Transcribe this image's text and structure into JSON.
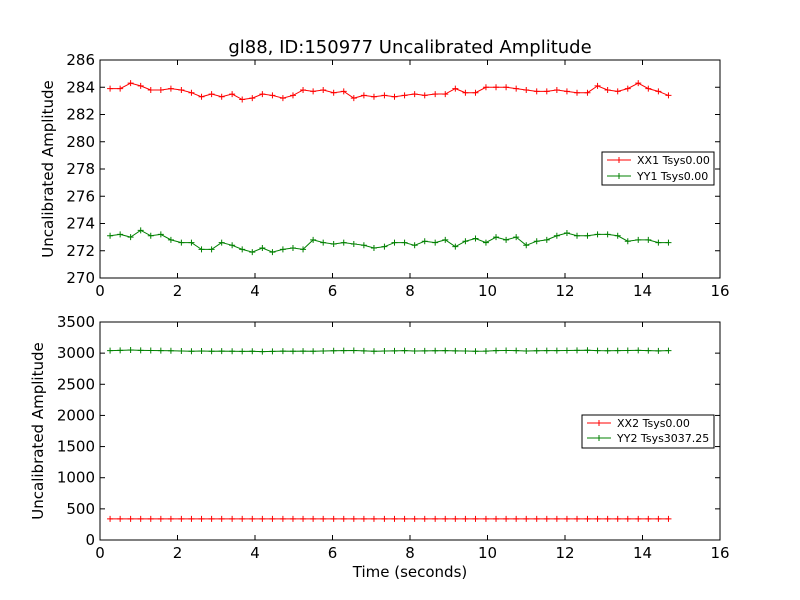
{
  "chart_data": [
    {
      "type": "line",
      "title": "gl88, ID:150977 Uncalibrated Amplitude",
      "xlabel": "",
      "ylabel": "Uncalibrated Amplitude",
      "xlim": [
        0,
        16
      ],
      "ylim": [
        270,
        286
      ],
      "xticks": [
        0,
        2,
        4,
        6,
        8,
        10,
        12,
        14,
        16
      ],
      "yticks": [
        270,
        272,
        274,
        276,
        278,
        280,
        282,
        284,
        286
      ],
      "legend_position": "center-right",
      "x": [
        0.26,
        0.52,
        0.79,
        1.05,
        1.31,
        1.57,
        1.83,
        2.1,
        2.36,
        2.62,
        2.88,
        3.14,
        3.41,
        3.67,
        3.93,
        4.19,
        4.45,
        4.72,
        4.98,
        5.24,
        5.5,
        5.76,
        6.03,
        6.29,
        6.55,
        6.81,
        7.07,
        7.34,
        7.6,
        7.86,
        8.12,
        8.38,
        8.65,
        8.91,
        9.17,
        9.43,
        9.69,
        9.96,
        10.22,
        10.48,
        10.74,
        11.0,
        11.27,
        11.53,
        11.79,
        12.05,
        12.31,
        12.58,
        12.84,
        13.1,
        13.36,
        13.62,
        13.89,
        14.15,
        14.41,
        14.67
      ],
      "series": [
        {
          "name": "XX1 Tsys0.00",
          "color": "#ff0000",
          "values": [
            283.9,
            283.9,
            284.3,
            284.1,
            283.8,
            283.8,
            283.9,
            283.8,
            283.6,
            283.3,
            283.5,
            283.3,
            283.5,
            283.1,
            283.2,
            283.5,
            283.4,
            283.2,
            283.4,
            283.8,
            283.7,
            283.8,
            283.6,
            283.7,
            283.2,
            283.4,
            283.3,
            283.4,
            283.3,
            283.4,
            283.5,
            283.4,
            283.5,
            283.5,
            283.9,
            283.6,
            283.6,
            284.0,
            284.0,
            284.0,
            283.9,
            283.8,
            283.7,
            283.7,
            283.8,
            283.7,
            283.6,
            283.6,
            284.1,
            283.8,
            283.7,
            283.9,
            284.3,
            283.9,
            283.7,
            283.4
          ]
        },
        {
          "name": "YY1 Tsys0.00",
          "color": "#008000",
          "values": [
            273.1,
            273.2,
            273.0,
            273.5,
            273.1,
            273.2,
            272.8,
            272.6,
            272.6,
            272.1,
            272.1,
            272.6,
            272.4,
            272.1,
            271.9,
            272.2,
            271.9,
            272.1,
            272.2,
            272.1,
            272.8,
            272.6,
            272.5,
            272.6,
            272.5,
            272.4,
            272.2,
            272.3,
            272.6,
            272.6,
            272.4,
            272.7,
            272.6,
            272.8,
            272.3,
            272.7,
            272.9,
            272.6,
            273.0,
            272.8,
            273.0,
            272.4,
            272.7,
            272.8,
            273.1,
            273.3,
            273.1,
            273.1,
            273.2,
            273.2,
            273.1,
            272.7,
            272.8,
            272.8,
            272.6,
            272.6
          ]
        }
      ]
    },
    {
      "type": "line",
      "title": "",
      "xlabel": "Time (seconds)",
      "ylabel": "Uncalibrated Amplitude",
      "xlim": [
        0,
        16
      ],
      "ylim": [
        0,
        3500
      ],
      "xticks": [
        0,
        2,
        4,
        6,
        8,
        10,
        12,
        14,
        16
      ],
      "yticks": [
        0,
        500,
        1000,
        1500,
        2000,
        2500,
        3000,
        3500
      ],
      "legend_position": "center-right",
      "x": [
        0.26,
        0.52,
        0.79,
        1.05,
        1.31,
        1.57,
        1.83,
        2.1,
        2.36,
        2.62,
        2.88,
        3.14,
        3.41,
        3.67,
        3.93,
        4.19,
        4.45,
        4.72,
        4.98,
        5.24,
        5.5,
        5.76,
        6.03,
        6.29,
        6.55,
        6.81,
        7.07,
        7.34,
        7.6,
        7.86,
        8.12,
        8.38,
        8.65,
        8.91,
        9.17,
        9.43,
        9.69,
        9.96,
        10.22,
        10.48,
        10.74,
        11.0,
        11.27,
        11.53,
        11.79,
        12.05,
        12.31,
        12.58,
        12.84,
        13.1,
        13.36,
        13.62,
        13.89,
        14.15,
        14.41,
        14.67
      ],
      "series": [
        {
          "name": "XX2 Tsys0.00",
          "color": "#ff0000",
          "values": [
            340,
            340,
            340,
            340,
            340,
            340,
            340,
            340,
            340,
            340,
            340,
            340,
            340,
            340,
            340,
            340,
            340,
            340,
            340,
            340,
            340,
            340,
            340,
            340,
            340,
            340,
            340,
            340,
            340,
            340,
            340,
            340,
            340,
            340,
            340,
            340,
            340,
            340,
            340,
            340,
            340,
            340,
            340,
            340,
            340,
            340,
            340,
            340,
            340,
            340,
            340,
            340,
            340,
            340,
            340,
            340
          ]
        },
        {
          "name": "YY2 Tsys3037.25",
          "color": "#008000",
          "values": [
            3040,
            3045,
            3050,
            3045,
            3043,
            3040,
            3038,
            3035,
            3030,
            3034,
            3030,
            3032,
            3030,
            3028,
            3030,
            3025,
            3028,
            3032,
            3030,
            3033,
            3030,
            3035,
            3038,
            3040,
            3042,
            3037,
            3030,
            3034,
            3036,
            3040,
            3034,
            3036,
            3038,
            3040,
            3036,
            3034,
            3030,
            3032,
            3040,
            3043,
            3040,
            3035,
            3038,
            3040,
            3040,
            3042,
            3044,
            3046,
            3040,
            3038,
            3040,
            3042,
            3045,
            3040,
            3036,
            3040
          ]
        }
      ]
    }
  ]
}
